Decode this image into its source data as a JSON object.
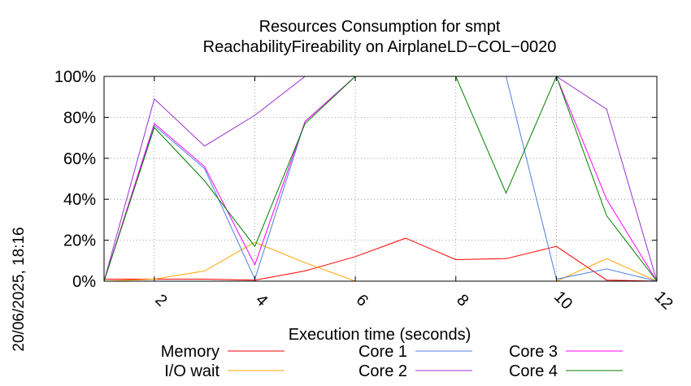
{
  "chart_data": {
    "type": "line",
    "title": [
      "Resources Consumption for smpt",
      "ReachabilityFireability on AirplaneLD−COL−0020"
    ],
    "xlabel": "Execution time (seconds)",
    "ylabel": "",
    "side_label": "20/06/2025, 18:16",
    "xlim": [
      1,
      12
    ],
    "ylim": [
      0,
      100
    ],
    "xticks": [
      {
        "value": 2,
        "label": "2"
      },
      {
        "value": 4,
        "label": "4"
      },
      {
        "value": 6,
        "label": "6"
      },
      {
        "value": 8,
        "label": "8"
      },
      {
        "value": 10,
        "label": "10"
      },
      {
        "value": 12,
        "label": "12"
      }
    ],
    "yticks": [
      {
        "value": 0,
        "label": "0%"
      },
      {
        "value": 20,
        "label": "20%"
      },
      {
        "value": 40,
        "label": "40%"
      },
      {
        "value": 60,
        "label": "60%"
      },
      {
        "value": 80,
        "label": "80%"
      },
      {
        "value": 100,
        "label": "100%"
      }
    ],
    "grid": true,
    "legend_position": "bottom",
    "x": [
      1,
      2,
      3,
      4,
      5,
      6,
      7,
      8,
      9,
      10,
      11,
      12
    ],
    "series": [
      {
        "name": "Memory",
        "color": "#ff0000",
        "values": [
          1,
          1,
          1,
          0.5,
          5,
          12,
          21,
          10.5,
          11,
          17,
          0.5,
          0
        ]
      },
      {
        "name": "I/O wait",
        "color": "#ffa500",
        "values": [
          0,
          1,
          5,
          19,
          9,
          0,
          0,
          0,
          0,
          0,
          11,
          0
        ]
      },
      {
        "name": "Core 1",
        "color": "#4f7fdf",
        "values": [
          0,
          76,
          55,
          1,
          78,
          100,
          100,
          100,
          100,
          1,
          6,
          0
        ]
      },
      {
        "name": "Core 2",
        "color": "#9932cc",
        "values": [
          0,
          89,
          66,
          81,
          100,
          100,
          100,
          100,
          100,
          100,
          84,
          0
        ]
      },
      {
        "name": "Core 3",
        "color": "#ff00ff",
        "values": [
          0,
          77,
          56,
          8,
          78,
          100,
          100,
          100,
          100,
          100,
          40,
          0
        ]
      },
      {
        "name": "Core 4",
        "color": "#008000",
        "values": [
          0,
          75,
          49,
          17,
          77,
          100,
          100,
          100,
          43,
          100,
          32,
          0
        ]
      }
    ]
  }
}
